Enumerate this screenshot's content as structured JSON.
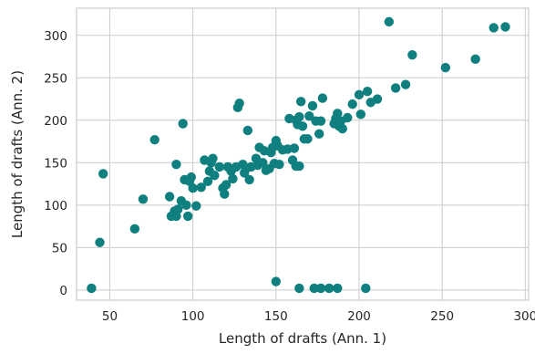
{
  "chart_data": {
    "type": "scatter",
    "title": "",
    "xlabel": "Length of drafts (Ann. 1)",
    "ylabel": "Length of drafts (Ann. 2)",
    "xlim": [
      30,
      302
    ],
    "ylim": [
      -12,
      332
    ],
    "xticks": [
      50,
      100,
      150,
      200,
      250,
      300
    ],
    "yticks": [
      0,
      50,
      100,
      150,
      200,
      250,
      300
    ],
    "grid": true,
    "marker_color": "#0f7f7f",
    "series": [
      {
        "points": [
          [
            39,
            2
          ],
          [
            44,
            56
          ],
          [
            46,
            137
          ],
          [
            65,
            72
          ],
          [
            70,
            107
          ],
          [
            77,
            177
          ],
          [
            86,
            110
          ],
          [
            87,
            87
          ],
          [
            89,
            93
          ],
          [
            90,
            87
          ],
          [
            90,
            148
          ],
          [
            91,
            95
          ],
          [
            93,
            105
          ],
          [
            94,
            196
          ],
          [
            95,
            130
          ],
          [
            96,
            100
          ],
          [
            97,
            87
          ],
          [
            98,
            128
          ],
          [
            99,
            133
          ],
          [
            100,
            120
          ],
          [
            102,
            99
          ],
          [
            105,
            121
          ],
          [
            107,
            153
          ],
          [
            109,
            128
          ],
          [
            110,
            140
          ],
          [
            111,
            150
          ],
          [
            112,
            155
          ],
          [
            113,
            135
          ],
          [
            116,
            145
          ],
          [
            118,
            120
          ],
          [
            119,
            113
          ],
          [
            120,
            124
          ],
          [
            121,
            145
          ],
          [
            123,
            140
          ],
          [
            124,
            131
          ],
          [
            126,
            145
          ],
          [
            127,
            215
          ],
          [
            128,
            220
          ],
          [
            130,
            148
          ],
          [
            131,
            138
          ],
          [
            132,
            143
          ],
          [
            133,
            188
          ],
          [
            134,
            130
          ],
          [
            135,
            145
          ],
          [
            138,
            155
          ],
          [
            139,
            147
          ],
          [
            140,
            168
          ],
          [
            142,
            150
          ],
          [
            143,
            164
          ],
          [
            144,
            141
          ],
          [
            146,
            143
          ],
          [
            147,
            162
          ],
          [
            148,
            168
          ],
          [
            149,
            149
          ],
          [
            150,
            176
          ],
          [
            151,
            170
          ],
          [
            152,
            148
          ],
          [
            154,
            165
          ],
          [
            157,
            166
          ],
          [
            158,
            202
          ],
          [
            160,
            153
          ],
          [
            161,
            167
          ],
          [
            162,
            146
          ],
          [
            162,
            200
          ],
          [
            163,
            195
          ],
          [
            164,
            146
          ],
          [
            164,
            204
          ],
          [
            165,
            222
          ],
          [
            166,
            193
          ],
          [
            167,
            178
          ],
          [
            169,
            178
          ],
          [
            170,
            205
          ],
          [
            172,
            217
          ],
          [
            174,
            199
          ],
          [
            176,
            184
          ],
          [
            177,
            199
          ],
          [
            178,
            226
          ],
          [
            185,
            196
          ],
          [
            186,
            202
          ],
          [
            187,
            208
          ],
          [
            188,
            193
          ],
          [
            189,
            199
          ],
          [
            190,
            190
          ],
          [
            193,
            203
          ],
          [
            196,
            219
          ],
          [
            200,
            230
          ],
          [
            201,
            207
          ],
          [
            205,
            234
          ],
          [
            207,
            221
          ],
          [
            211,
            225
          ],
          [
            218,
            316
          ],
          [
            222,
            238
          ],
          [
            228,
            242
          ],
          [
            232,
            277
          ],
          [
            252,
            262
          ],
          [
            270,
            272
          ],
          [
            281,
            309
          ],
          [
            288,
            310
          ],
          [
            150,
            10
          ],
          [
            164,
            2
          ],
          [
            173,
            2
          ],
          [
            177,
            2
          ],
          [
            182,
            2
          ],
          [
            187,
            2
          ],
          [
            204,
            2
          ]
        ]
      }
    ]
  }
}
